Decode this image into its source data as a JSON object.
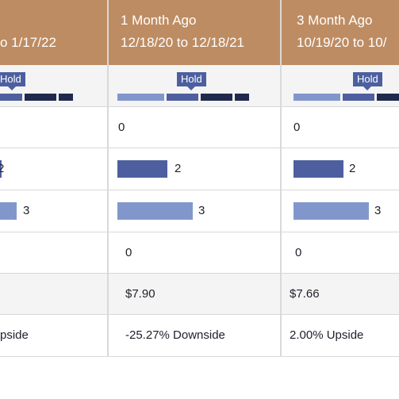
{
  "columns": [
    {
      "period_line1": "",
      "period_line2": "o 1/17/22",
      "consensus": "Hold",
      "row1": "",
      "row2": "2",
      "row3": "3",
      "row4": "",
      "price_target": "",
      "upside": "pside"
    },
    {
      "period_line1": "1 Month Ago",
      "period_line2": "12/18/20 to 12/18/21",
      "consensus": "Hold",
      "row1": "0",
      "row2": "2",
      "row3": "3",
      "row4": "0",
      "price_target": "$7.90",
      "upside": "-25.27% Downside"
    },
    {
      "period_line1": "3 Month Ago",
      "period_line2": "10/19/20 to 10/",
      "consensus": "Hold",
      "row1": "0",
      "row2": "2",
      "row3": "3",
      "row4": "0",
      "price_target": "$7.66",
      "upside": "2.00% Upside"
    }
  ],
  "colors": {
    "header_bg": "#be8c62",
    "bar_light": "#8197cc",
    "bar_mid": "#4d5f9f",
    "bar_dark": "#1f2a4e",
    "divider": "#d9d9d9"
  }
}
